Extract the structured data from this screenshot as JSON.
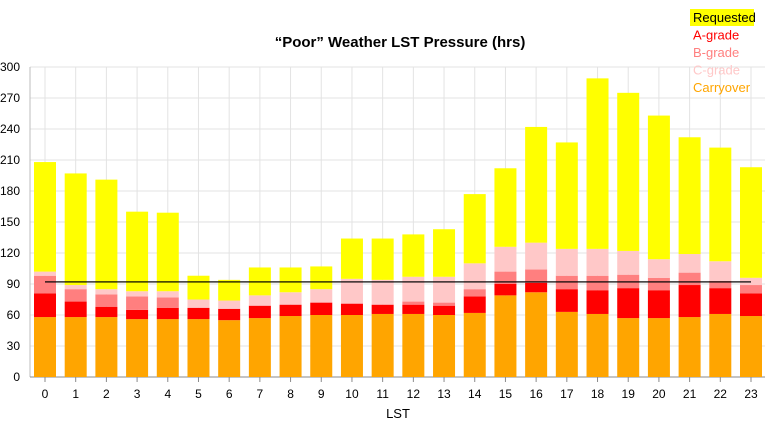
{
  "chart_data": {
    "type": "bar",
    "stacked": true,
    "title": "“Poor” Weather LST Pressure (hrs)",
    "xlabel": "LST",
    "ylabel": "",
    "ylim": [
      0,
      300
    ],
    "yticks": [
      0,
      30,
      60,
      90,
      120,
      150,
      180,
      210,
      240,
      270,
      300
    ],
    "grid": true,
    "legend_position": "top-right",
    "categories": [
      "0",
      "1",
      "2",
      "3",
      "4",
      "5",
      "6",
      "7",
      "8",
      "9",
      "10",
      "11",
      "12",
      "13",
      "14",
      "15",
      "16",
      "17",
      "18",
      "19",
      "20",
      "21",
      "22",
      "23"
    ],
    "series": [
      {
        "name": "Carryover",
        "color": "#FFA500",
        "values": [
          58,
          58,
          58,
          56,
          56,
          56,
          55,
          57,
          59,
          60,
          60,
          61,
          61,
          60,
          62,
          79,
          82,
          63,
          61,
          57,
          57,
          58,
          61,
          59
        ]
      },
      {
        "name": "A-grade",
        "color": "#FF0000",
        "values": [
          23,
          15,
          10,
          9,
          11,
          11,
          11,
          12,
          11,
          12,
          11,
          9,
          9,
          9,
          16,
          11,
          9,
          22,
          23,
          29,
          27,
          31,
          25,
          22
        ]
      },
      {
        "name": "B-grade",
        "color": "#FF7F7F",
        "values": [
          17,
          12,
          12,
          13,
          10,
          0,
          0,
          0,
          0,
          0,
          0,
          0,
          3,
          3,
          7,
          12,
          13,
          13,
          14,
          13,
          12,
          12,
          7,
          8
        ]
      },
      {
        "name": "C-grade",
        "color": "#FFC8C8",
        "values": [
          4,
          4,
          5,
          5,
          6,
          8,
          8,
          10,
          12,
          13,
          24,
          24,
          24,
          25,
          25,
          24,
          26,
          26,
          26,
          23,
          18,
          18,
          19,
          7
        ]
      },
      {
        "name": "Requested",
        "color": "#FFFF00",
        "values": [
          106,
          108,
          106,
          77,
          76,
          23,
          20,
          27,
          24,
          22,
          39,
          40,
          41,
          46,
          67,
          76,
          112,
          103,
          165,
          153,
          139,
          113,
          110,
          107
        ]
      }
    ],
    "reference_line": {
      "value": 92,
      "color": "#000000"
    },
    "legend": [
      {
        "label": "Requested",
        "color": "#000000",
        "background": "#FFFF00"
      },
      {
        "label": "A-grade",
        "color": "#FF0000"
      },
      {
        "label": "B-grade",
        "color": "#FF7F7F"
      },
      {
        "label": "C-grade",
        "color": "#FFC8C8"
      },
      {
        "label": "Carryover",
        "color": "#FFA500"
      }
    ]
  }
}
